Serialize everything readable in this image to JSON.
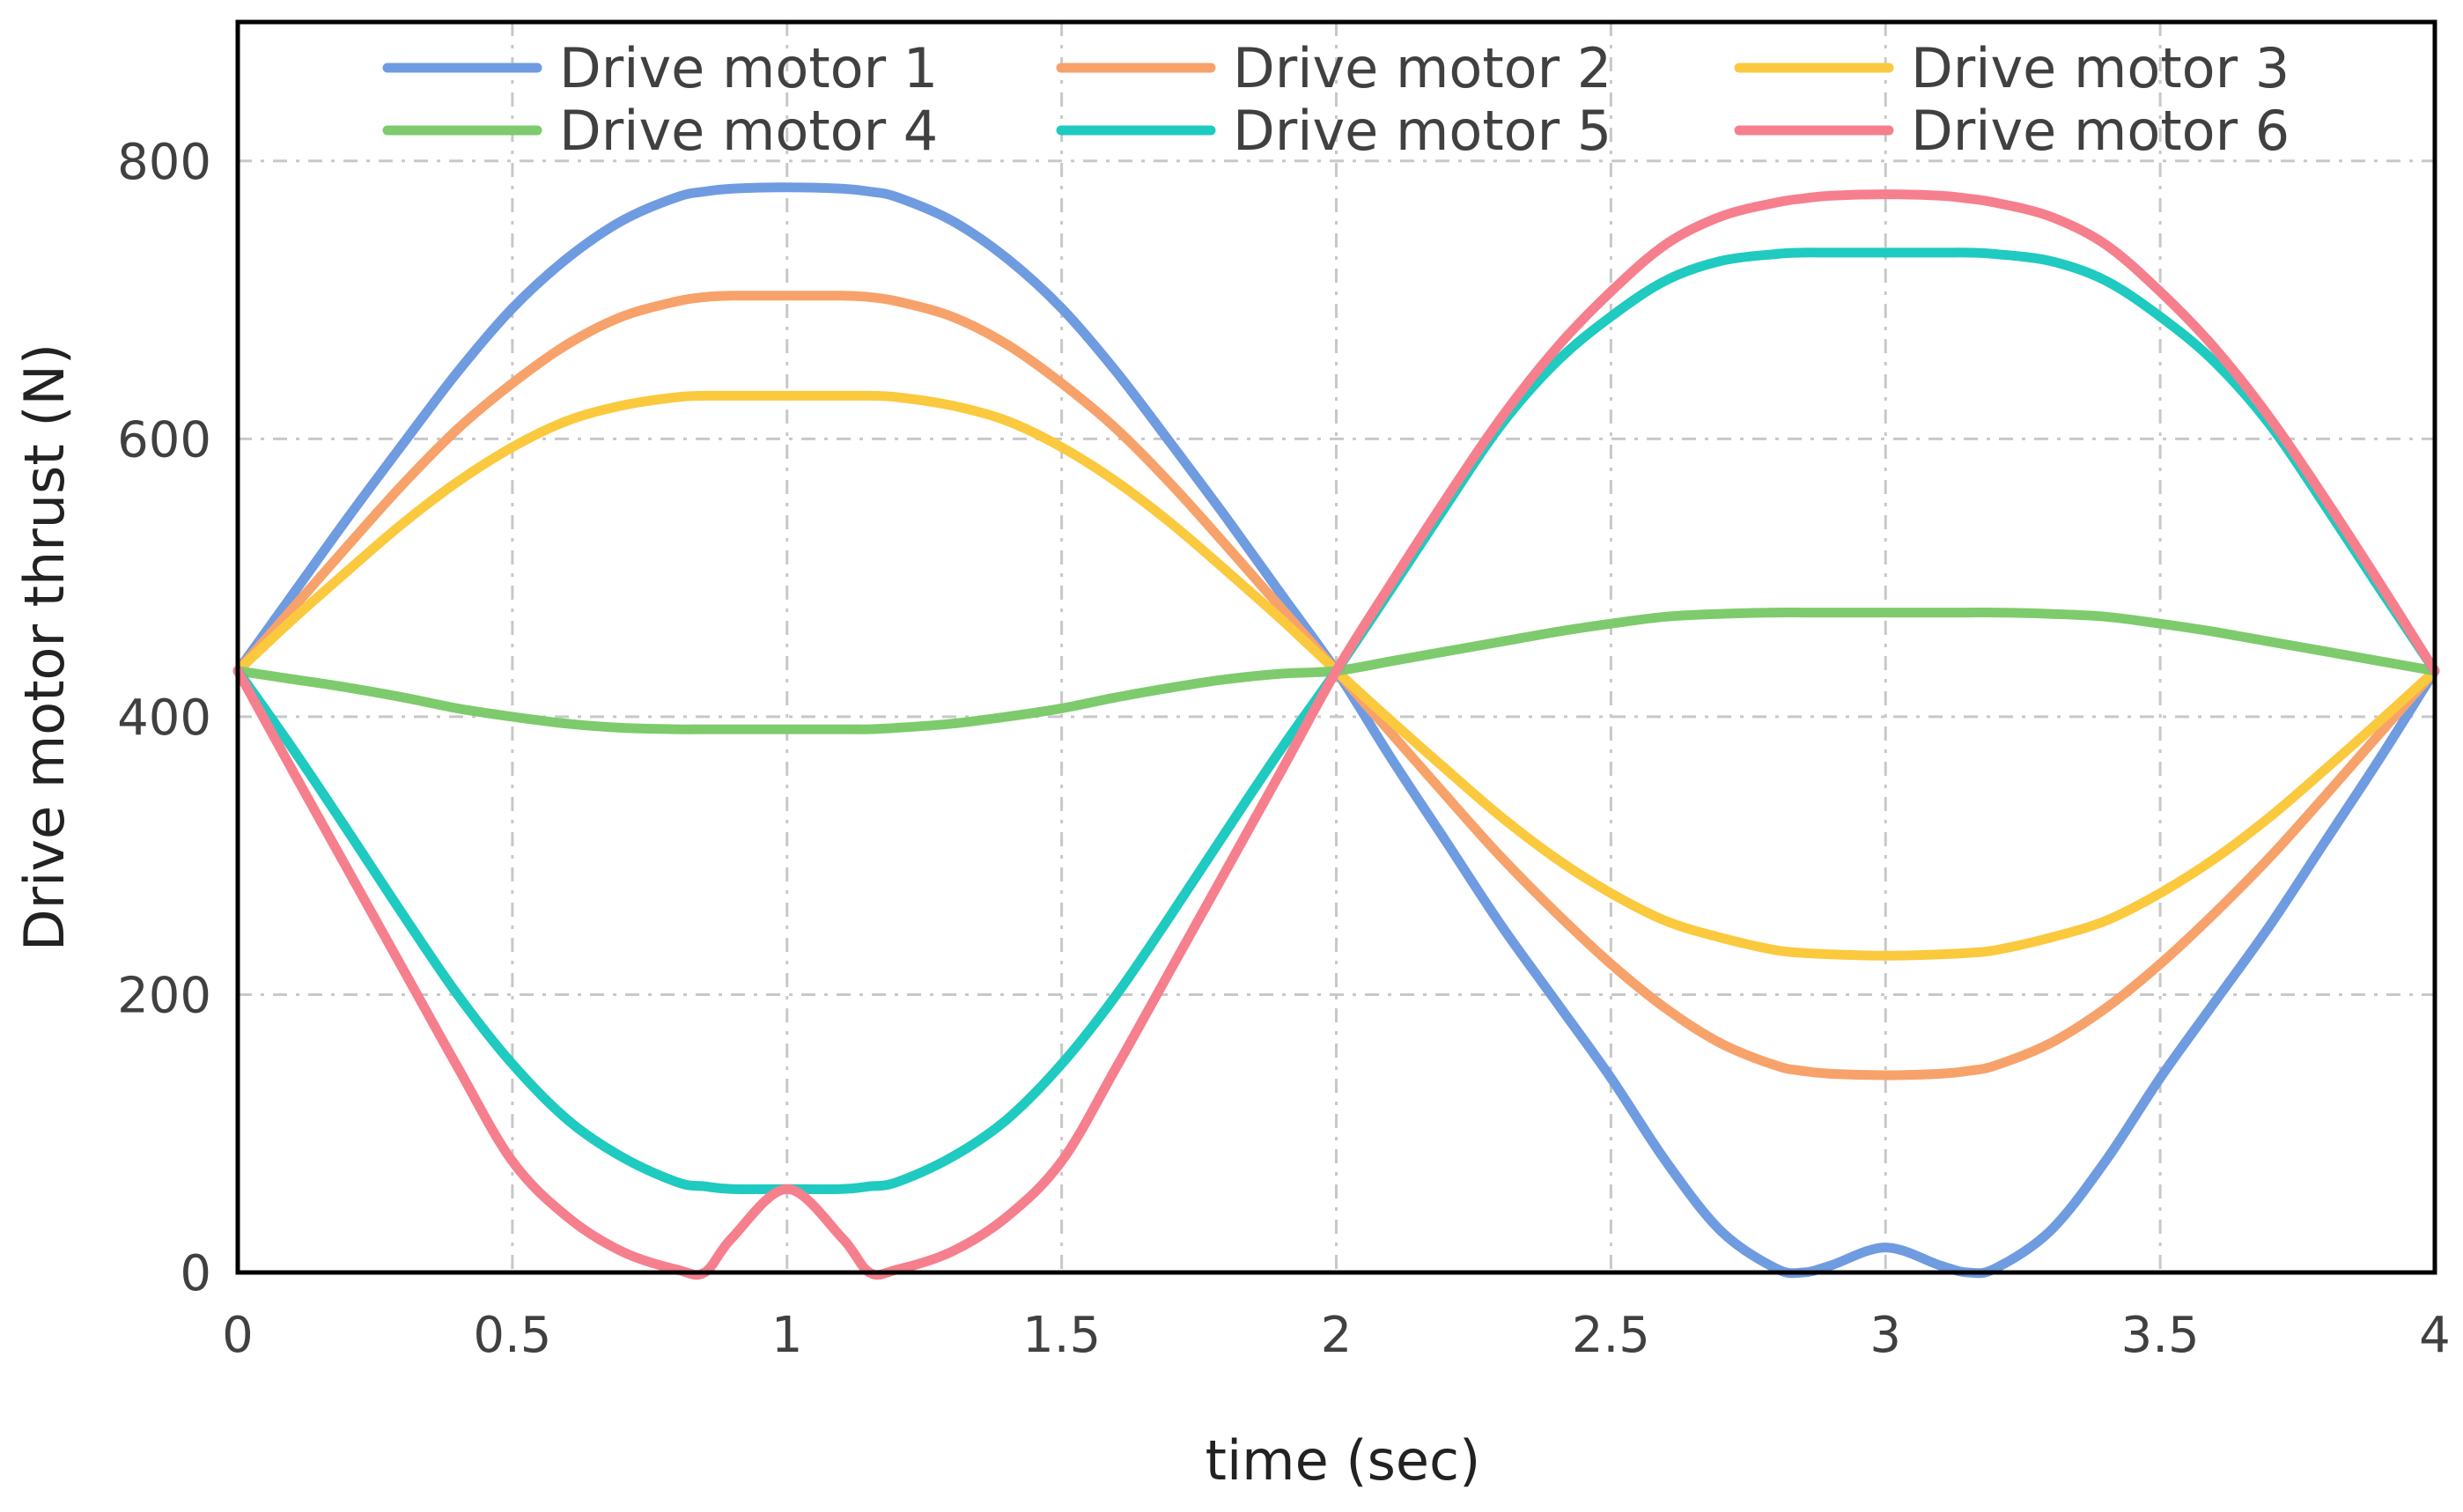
{
  "chart_data": {
    "type": "line",
    "title": "",
    "xlabel": "time (sec)",
    "ylabel": "Drive motor thrust (N)",
    "xlim": [
      0,
      4
    ],
    "ylim": [
      0,
      900
    ],
    "x_ticks": [
      0,
      0.5,
      1,
      1.5,
      2,
      2.5,
      3,
      3.5,
      4
    ],
    "x_tick_labels": [
      "0",
      "0.5",
      "1",
      "1.5",
      "2",
      "2.5",
      "3",
      "3.5",
      "4"
    ],
    "y_ticks": [
      0,
      200,
      400,
      600,
      800
    ],
    "y_tick_labels": [
      "0",
      "200",
      "400",
      "600",
      "800"
    ],
    "grid": true,
    "legend_position": "top",
    "x": [
      0,
      0.1,
      0.2,
      0.3,
      0.4,
      0.5,
      0.6,
      0.7,
      0.8,
      0.85,
      0.9,
      1.0,
      1.1,
      1.15,
      1.2,
      1.3,
      1.4,
      1.5,
      1.6,
      1.7,
      1.8,
      1.9,
      2.0,
      2.1,
      2.2,
      2.3,
      2.4,
      2.5,
      2.6,
      2.7,
      2.8,
      2.85,
      2.9,
      3.0,
      3.1,
      3.15,
      3.2,
      3.3,
      3.4,
      3.5,
      3.6,
      3.7,
      3.8,
      3.9,
      4.0
    ],
    "series": [
      {
        "name": "Drive motor 1",
        "color": "#6f9be0",
        "values": [
          433,
          488,
          543,
          596,
          648,
          694,
          730,
          757,
          774,
          778,
          780,
          781,
          780,
          778,
          774,
          757,
          730,
          694,
          648,
          596,
          543,
          488,
          433,
          370,
          310,
          250,
          195,
          140,
          80,
          30,
          3,
          0,
          5,
          18,
          5,
          0,
          3,
          30,
          80,
          140,
          195,
          250,
          310,
          370,
          433
        ]
      },
      {
        "name": "Drive motor 2",
        "color": "#f7a26a",
        "values": [
          433,
          478,
          523,
          567,
          607,
          640,
          668,
          688,
          699,
          702,
          703,
          703,
          703,
          702,
          699,
          688,
          668,
          640,
          607,
          567,
          523,
          478,
          433,
          388,
          343,
          299,
          259,
          222,
          190,
          165,
          149,
          145,
          143,
          142,
          143,
          145,
          149,
          165,
          190,
          222,
          259,
          299,
          343,
          388,
          433
        ]
      },
      {
        "name": "Drive motor 3",
        "color": "#fbc93e",
        "values": [
          433,
          470,
          505,
          539,
          569,
          594,
          613,
          624,
          630,
          631,
          631,
          631,
          631,
          631,
          630,
          624,
          613,
          594,
          569,
          539,
          505,
          470,
          433,
          397,
          362,
          328,
          298,
          273,
          253,
          241,
          232,
          230,
          229,
          228,
          229,
          230,
          232,
          241,
          253,
          273,
          298,
          328,
          362,
          397,
          433
        ]
      },
      {
        "name": "Drive motor 4",
        "color": "#7dcb6c",
        "values": [
          433,
          427,
          421,
          414,
          406,
          400,
          395,
          392,
          391,
          391,
          391,
          391,
          391,
          391,
          392,
          395,
          400,
          406,
          414,
          421,
          427,
          431,
          433,
          440,
          447,
          454,
          461,
          467,
          472,
          474,
          475,
          475,
          475,
          475,
          475,
          475,
          475,
          474,
          472,
          467,
          461,
          454,
          447,
          440,
          433
        ]
      },
      {
        "name": "Drive motor 5",
        "color": "#1fcac0",
        "values": [
          433,
          377,
          318,
          258,
          200,
          150,
          110,
          83,
          65,
          62,
          60,
          60,
          60,
          62,
          65,
          83,
          110,
          150,
          200,
          258,
          318,
          377,
          433,
          492,
          552,
          610,
          655,
          688,
          714,
          728,
          733,
          734,
          734,
          734,
          734,
          734,
          733,
          728,
          714,
          688,
          655,
          610,
          552,
          492,
          433
        ]
      },
      {
        "name": "Drive motor 6",
        "color": "#f67f8d",
        "values": [
          433,
          361,
          290,
          219,
          148,
          80,
          40,
          15,
          2,
          0,
          25,
          60,
          25,
          0,
          2,
          15,
          40,
          80,
          148,
          219,
          290,
          361,
          433,
          496,
          557,
          615,
          665,
          706,
          740,
          760,
          770,
          773,
          775,
          776,
          775,
          773,
          770,
          760,
          740,
          706,
          665,
          615,
          557,
          496,
          433
        ]
      }
    ]
  }
}
